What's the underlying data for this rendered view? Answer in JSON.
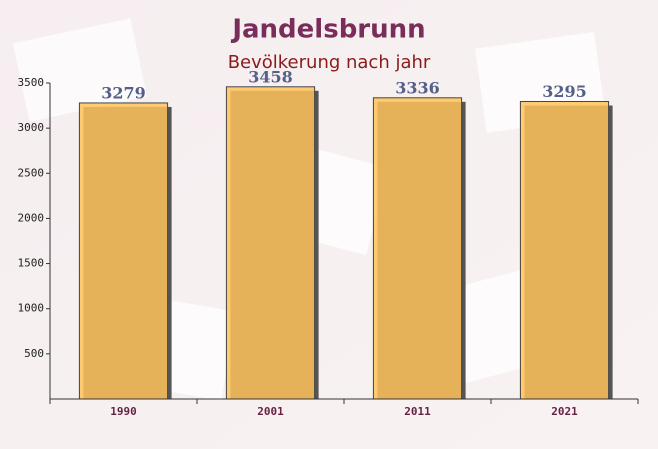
{
  "chart_data": {
    "type": "bar",
    "title": "Jandelsbrunn",
    "subtitle": "Bevölkerung nach jahr",
    "categories": [
      "1990",
      "2001",
      "2011",
      "2021"
    ],
    "values": [
      3279,
      3458,
      3336,
      3295
    ],
    "color": "#ffc35a",
    "ylim": [
      0,
      3500
    ],
    "yticks": [
      500,
      1000,
      1500,
      2000,
      2500,
      3000,
      3500
    ],
    "grid": false
  }
}
